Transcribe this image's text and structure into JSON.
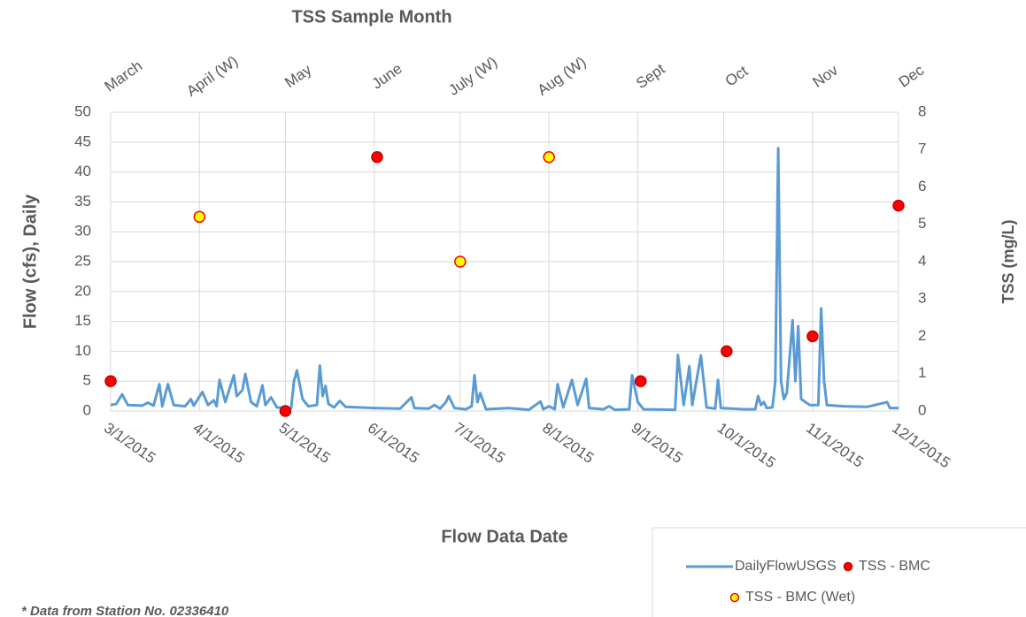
{
  "chart_data": {
    "type": "line",
    "x2_label": "TSS Sample Month",
    "x_label": "Flow Data Date",
    "y_label": "Flow (cfs), Daily",
    "y2_label": "TSS (mg/L)",
    "note": "* Data from Station No. 02336410",
    "xlim": [
      "2015-03-01",
      "2015-12-01"
    ],
    "xticks": [
      {
        "value": "2015-03-01",
        "label": "3/1/2015"
      },
      {
        "value": "2015-04-01",
        "label": "4/1/2015"
      },
      {
        "value": "2015-05-01",
        "label": "5/1/2015"
      },
      {
        "value": "2015-06-01",
        "label": "6/1/2015"
      },
      {
        "value": "2015-07-01",
        "label": "7/1/2015"
      },
      {
        "value": "2015-08-01",
        "label": "8/1/2015"
      },
      {
        "value": "2015-09-01",
        "label": "9/1/2015"
      },
      {
        "value": "2015-10-01",
        "label": "10/1/2015"
      },
      {
        "value": "2015-11-01",
        "label": "11/1/2015"
      },
      {
        "value": "2015-12-01",
        "label": "12/1/2015"
      }
    ],
    "x2ticks": [
      {
        "value": "2015-03-01",
        "label": "March"
      },
      {
        "value": "2015-04-01",
        "label": "April (W)"
      },
      {
        "value": "2015-05-01",
        "label": "May"
      },
      {
        "value": "2015-06-01",
        "label": "June"
      },
      {
        "value": "2015-07-01",
        "label": "July (W)"
      },
      {
        "value": "2015-08-01",
        "label": "Aug (W)"
      },
      {
        "value": "2015-09-01",
        "label": "Sept"
      },
      {
        "value": "2015-10-01",
        "label": "Oct"
      },
      {
        "value": "2015-11-01",
        "label": "Nov"
      },
      {
        "value": "2015-12-01",
        "label": "Dec"
      }
    ],
    "ylim": [
      0,
      50
    ],
    "yticks": [
      0,
      5,
      10,
      15,
      20,
      25,
      30,
      35,
      40,
      45,
      50
    ],
    "y2lim": [
      0,
      8
    ],
    "y2ticks": [
      0,
      1,
      2,
      3,
      4,
      5,
      6,
      7,
      8
    ],
    "grid": true,
    "legend": "bottom-right",
    "series": [
      {
        "name": "DailyFlowUSGS",
        "type": "line",
        "color": "#5b9bd5",
        "x": [
          "2015-03-01",
          "2015-03-03",
          "2015-03-05",
          "2015-03-07",
          "2015-03-12",
          "2015-03-14",
          "2015-03-16",
          "2015-03-18",
          "2015-03-19",
          "2015-03-21",
          "2015-03-23",
          "2015-03-27",
          "2015-03-29",
          "2015-03-30",
          "2015-04-02",
          "2015-04-04",
          "2015-04-06",
          "2015-04-07",
          "2015-04-08",
          "2015-04-10",
          "2015-04-13",
          "2015-04-14",
          "2015-04-16",
          "2015-04-17",
          "2015-04-19",
          "2015-04-21",
          "2015-04-23",
          "2015-04-24",
          "2015-04-26",
          "2015-04-28",
          "2015-05-03",
          "2015-05-04",
          "2015-05-05",
          "2015-05-07",
          "2015-05-09",
          "2015-05-12",
          "2015-05-13",
          "2015-05-14",
          "2015-05-15",
          "2015-05-16",
          "2015-05-18",
          "2015-05-20",
          "2015-05-22",
          "2015-06-01",
          "2015-06-10",
          "2015-06-14",
          "2015-06-15",
          "2015-06-20",
          "2015-06-22",
          "2015-06-24",
          "2015-06-26",
          "2015-06-27",
          "2015-06-29",
          "2015-07-03",
          "2015-07-05",
          "2015-07-06",
          "2015-07-07",
          "2015-07-08",
          "2015-07-10",
          "2015-07-18",
          "2015-07-25",
          "2015-07-29",
          "2015-07-30",
          "2015-08-01",
          "2015-08-03",
          "2015-08-04",
          "2015-08-06",
          "2015-08-09",
          "2015-08-11",
          "2015-08-14",
          "2015-08-15",
          "2015-08-20",
          "2015-08-22",
          "2015-08-24",
          "2015-08-29",
          "2015-08-30",
          "2015-09-01",
          "2015-09-03",
          "2015-09-14",
          "2015-09-15",
          "2015-09-17",
          "2015-09-19",
          "2015-09-20",
          "2015-09-23",
          "2015-09-25",
          "2015-09-28",
          "2015-09-29",
          "2015-09-30",
          "2015-10-08",
          "2015-10-12",
          "2015-10-13",
          "2015-10-14",
          "2015-10-15",
          "2015-10-16",
          "2015-10-18",
          "2015-10-19",
          "2015-10-20",
          "2015-10-21",
          "2015-10-22",
          "2015-10-23",
          "2015-10-25",
          "2015-10-26",
          "2015-10-27",
          "2015-10-28",
          "2015-10-31",
          "2015-11-03",
          "2015-11-04",
          "2015-11-05",
          "2015-11-06",
          "2015-11-12",
          "2015-11-20",
          "2015-11-27",
          "2015-11-28",
          "2015-12-01"
        ],
        "values": [
          1.0,
          1.2,
          2.8,
          1.0,
          0.9,
          1.4,
          0.9,
          4.5,
          0.8,
          4.5,
          1.0,
          0.8,
          2.0,
          0.9,
          3.2,
          1.0,
          1.8,
          0.8,
          5.2,
          1.5,
          6.0,
          2.5,
          3.5,
          6.2,
          1.5,
          0.8,
          4.3,
          1.0,
          2.3,
          0.6,
          0.5,
          5.0,
          6.8,
          2.0,
          0.8,
          1.0,
          7.6,
          2.5,
          4.2,
          1.2,
          0.6,
          1.7,
          0.7,
          0.5,
          0.4,
          2.3,
          0.5,
          0.4,
          1.0,
          0.4,
          1.5,
          2.5,
          0.5,
          0.3,
          0.8,
          6.0,
          1.5,
          3.0,
          0.3,
          0.5,
          0.2,
          1.6,
          0.3,
          0.8,
          0.3,
          4.5,
          0.6,
          5.2,
          1.0,
          5.4,
          0.5,
          0.3,
          0.8,
          0.2,
          0.3,
          6.0,
          1.5,
          0.3,
          0.2,
          9.4,
          1.0,
          7.5,
          1.0,
          9.3,
          0.6,
          0.4,
          5.2,
          0.5,
          0.3,
          0.3,
          2.5,
          1.0,
          1.5,
          0.5,
          0.6,
          5.0,
          44.0,
          5.0,
          2.0,
          3.0,
          15.2,
          5.0,
          14.2,
          2.0,
          1.0,
          1.0,
          17.2,
          5.0,
          1.0,
          0.8,
          0.7,
          1.5,
          0.5,
          0.5
        ]
      },
      {
        "name": "TSS - BMC",
        "type": "scatter",
        "axis": "y2",
        "color": "#ff0000",
        "edge": "#c00000",
        "x": [
          "2015-03-01",
          "2015-05-01",
          "2015-06-02",
          "2015-09-02",
          "2015-10-02",
          "2015-11-01",
          "2015-12-01"
        ],
        "values": [
          0.8,
          0,
          6.8,
          0.8,
          1.6,
          2.0,
          5.5
        ]
      },
      {
        "name": "TSS - BMC (Wet)",
        "type": "scatter",
        "axis": "y2",
        "color": "#ffff00",
        "edge": "#ff0000",
        "x": [
          "2015-04-01",
          "2015-07-01",
          "2015-08-01"
        ],
        "values": [
          5.2,
          4.0,
          6.8
        ]
      }
    ]
  }
}
